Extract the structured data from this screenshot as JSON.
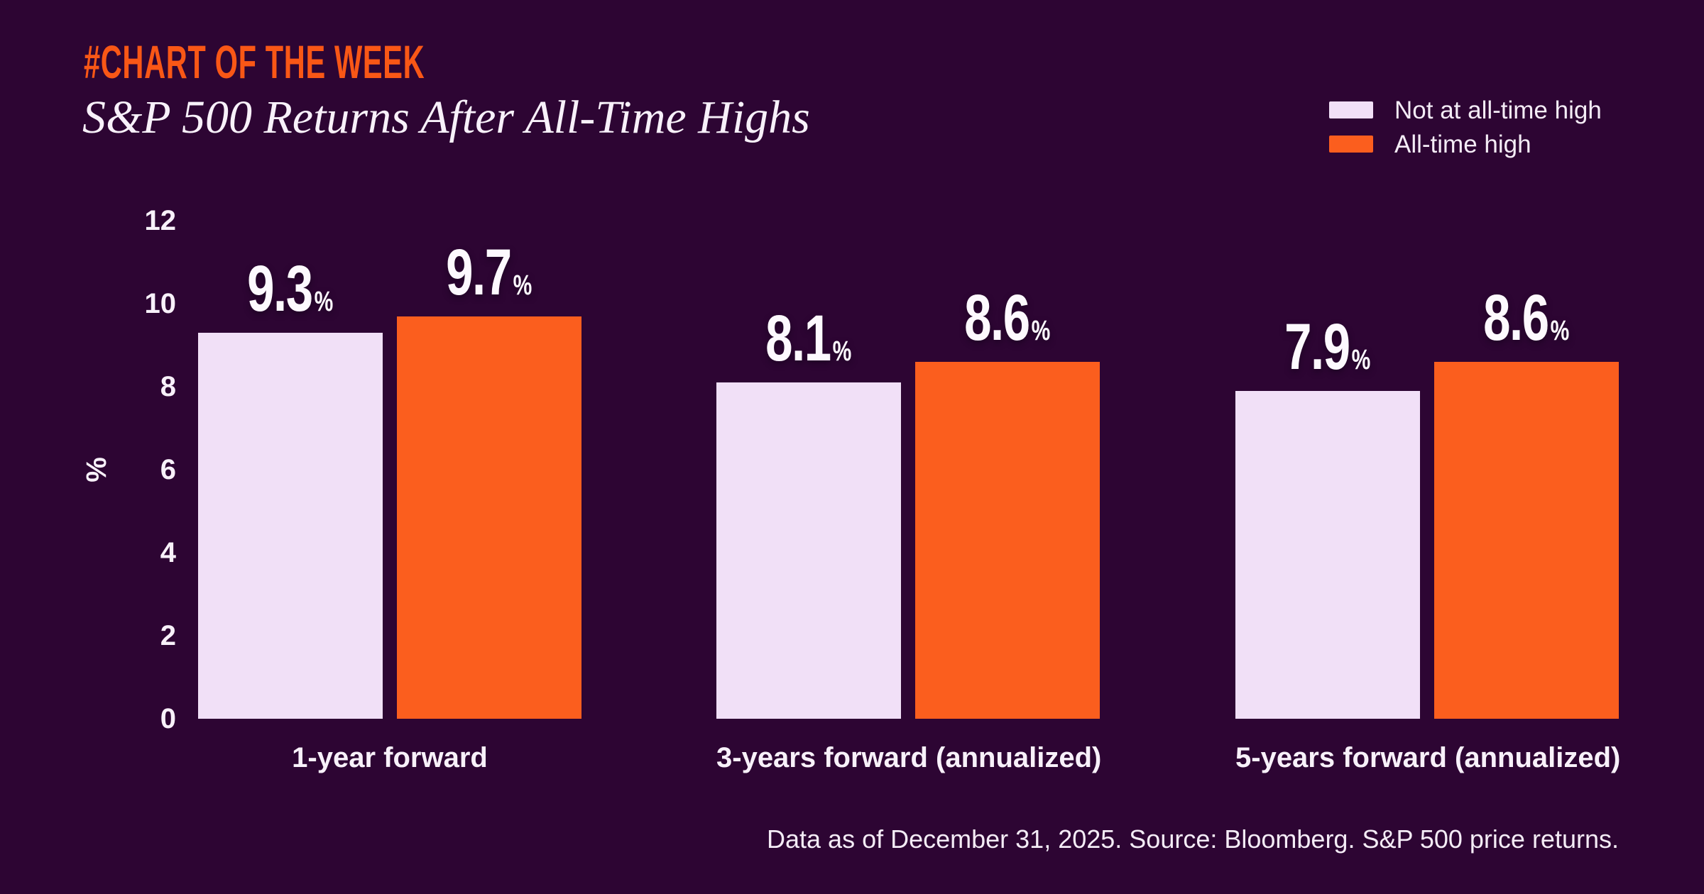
{
  "header": {
    "tag": "#CHART OF THE WEEK",
    "title": "S&P 500 Returns After All-Time Highs"
  },
  "legend": {
    "position": "top-right",
    "items": [
      {
        "label": "Not at all-time high",
        "color": "#f1e0f7"
      },
      {
        "label": "All-time high",
        "color": "#fb5e1e"
      }
    ]
  },
  "footer": {
    "note": "Data as of December 31, 2025. Source: Bloomberg. S&P 500 price returns."
  },
  "colors": {
    "background": "#2d0533",
    "accent_orange": "#fb5e1e",
    "tag_orange": "#f95716",
    "lavender": "#f1e0f7",
    "text": "#f8f1fa"
  },
  "chart_data": {
    "type": "bar",
    "title": "S&P 500 Returns After All-Time Highs",
    "categories": [
      "1-year forward",
      "3-years forward (annualized)",
      "5-years forward (annualized)"
    ],
    "series": [
      {
        "name": "Not at all-time high",
        "color": "#f1e0f7",
        "values": [
          9.3,
          8.1,
          7.9
        ]
      },
      {
        "name": "All-time high",
        "color": "#fb5e1e",
        "values": [
          9.7,
          8.6,
          8.6
        ]
      }
    ],
    "value_labels": [
      [
        "9.3",
        "8.1",
        "7.9"
      ],
      [
        "9.7",
        "8.6",
        "8.6"
      ]
    ],
    "value_suffix": "%",
    "ylabel": "%",
    "yticks": [
      0,
      2,
      4,
      6,
      8,
      10,
      12
    ],
    "ylim": [
      0,
      12
    ],
    "grid": false,
    "legend_position": "top-right"
  }
}
